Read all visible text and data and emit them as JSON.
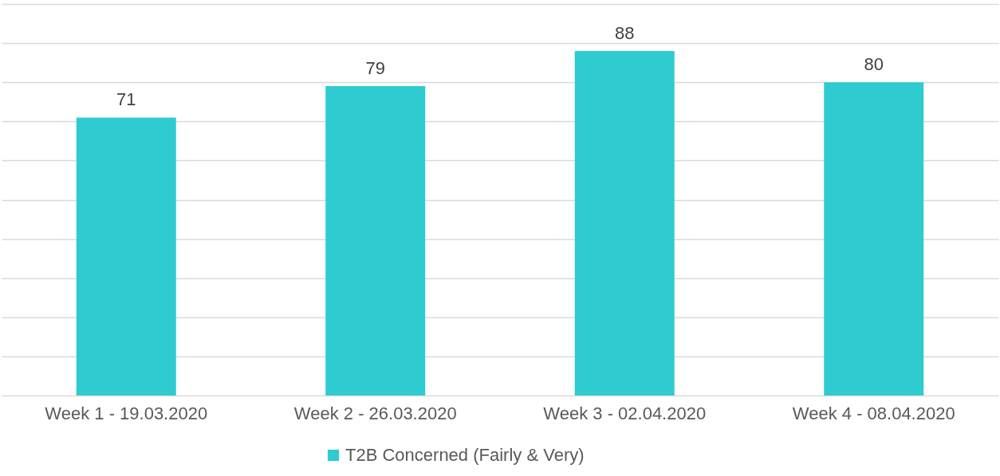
{
  "chart_data": {
    "type": "bar",
    "categories": [
      "Week 1 - 19.03.2020",
      "Week 2 - 26.03.2020",
      "Week 3 - 02.04.2020",
      "Week 4 - 08.04.2020"
    ],
    "series": [
      {
        "name": "T2B Concerned (Fairly & Very)",
        "color": "#2ecbd1",
        "values": [
          71,
          79,
          88,
          80
        ]
      }
    ],
    "ylim": [
      0,
      100
    ],
    "yticks": [
      {
        "value": 0,
        "label": null
      },
      {
        "value": 10,
        "label": null
      },
      {
        "value": 20,
        "label": null
      },
      {
        "value": 30,
        "label": null
      },
      {
        "value": 40,
        "label": null
      },
      {
        "value": 50,
        "label": null
      },
      {
        "value": 60,
        "label": null
      },
      {
        "value": 70,
        "label": null
      },
      {
        "value": 80,
        "label": null
      },
      {
        "value": 90,
        "label": null
      },
      {
        "value": 100,
        "label": null
      }
    ],
    "tick_labels": "x",
    "grid": "y",
    "legend": "bottom",
    "data_labels": true
  }
}
